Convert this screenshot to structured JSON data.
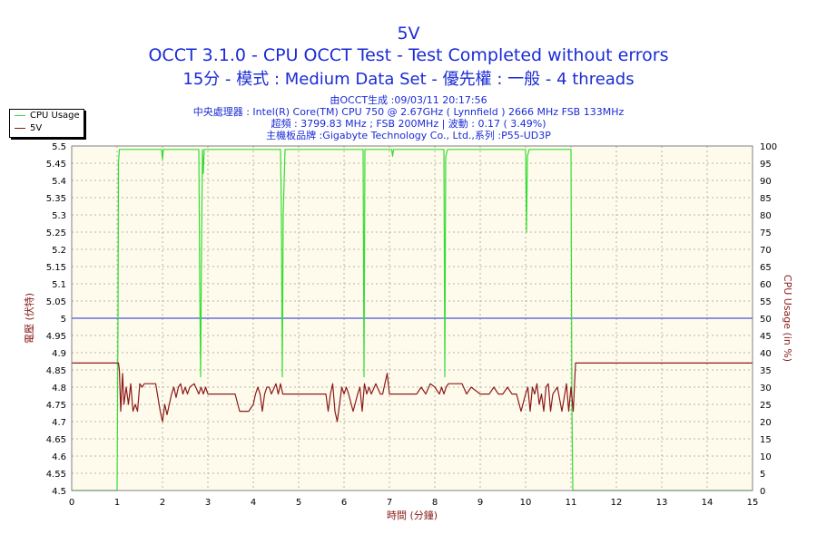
{
  "chart_data": {
    "type": "line",
    "title": "5V",
    "subtitle_lines": [
      "OCCT 3.1.0 - CPU OCCT Test - Test Completed without errors",
      "15分 - 模式 : Medium Data Set - 優先權 : 一般 - 4 threads"
    ],
    "info_lines": [
      "由OCCT生成 :09/03/11 20:17:56",
      "中央處理器 : Intel(R) Core(TM) CPU 750 @ 2.67GHz ( Lynnfield ) 2666 MHz FSB 133MHz",
      "超頻 : 3799.83 MHz ; FSB 200MHz | 波動 : 0.17 ( 3.49%)",
      "主機板品牌 :Gigabyte Technology Co., Ltd.,系列 :P55-UD3P"
    ],
    "xlabel": "時間 (分鐘)",
    "ylabel": "電壓 (伏特)",
    "y2label": "CPU Usage (in %)",
    "xlim": [
      0,
      15
    ],
    "ylim": [
      4.5,
      5.5
    ],
    "y2lim": [
      0,
      100
    ],
    "xticks": [
      "0",
      "1",
      "2",
      "3",
      "4",
      "5",
      "6",
      "7",
      "8",
      "9",
      "10",
      "11",
      "12",
      "13",
      "14",
      "15"
    ],
    "yticks": [
      "4.5",
      "4.55",
      "4.6",
      "4.65",
      "4.7",
      "4.75",
      "4.8",
      "4.85",
      "4.9",
      "4.95",
      "5",
      "5.05",
      "5.1",
      "5.15",
      "5.2",
      "5.25",
      "5.3",
      "5.35",
      "5.4",
      "5.45",
      "5.5"
    ],
    "y2ticks": [
      "0",
      "5",
      "10",
      "15",
      "20",
      "25",
      "30",
      "35",
      "40",
      "45",
      "50",
      "55",
      "60",
      "65",
      "70",
      "75",
      "80",
      "85",
      "90",
      "95",
      "100"
    ],
    "reference_line": {
      "y": 5.0,
      "color": "#1a2bd6"
    },
    "grid": true,
    "legend_position": "top-left",
    "colors": {
      "plot_bg": "#fffbec",
      "grid": "#b5b5a5",
      "cpu": "#33dd33",
      "v5": "#8b1a1a",
      "title": "#1a2bd6",
      "axis_label": "#8b1a1a"
    },
    "series": [
      {
        "name": "CPU Usage",
        "axis": "right",
        "color": "#33dd33",
        "x": [
          0,
          1.0,
          1.02,
          1.03,
          1.05,
          1.1,
          1.98,
          2.0,
          2.02,
          2.05,
          2.8,
          2.82,
          2.84,
          2.86,
          2.88,
          2.9,
          2.92,
          2.95,
          4.6,
          4.62,
          4.64,
          4.66,
          4.7,
          6.42,
          6.44,
          6.46,
          6.5,
          7.05,
          7.07,
          7.09,
          7.12,
          8.2,
          8.22,
          8.24,
          8.28,
          10.0,
          10.02,
          10.04,
          10.08,
          11.0,
          11.02,
          11.04,
          15
        ],
        "y": [
          0,
          0,
          50,
          95,
          99,
          99,
          99,
          96,
          99,
          99,
          99,
          60,
          33,
          70,
          99,
          92,
          99,
          99,
          99,
          80,
          33,
          80,
          99,
          99,
          33,
          99,
          99,
          99,
          97,
          99,
          99,
          99,
          33,
          97,
          99,
          99,
          75,
          97,
          99,
          99,
          25,
          0,
          0
        ]
      },
      {
        "name": "5V",
        "axis": "left",
        "color": "#8b1a1a",
        "x": [
          0,
          1.03,
          1.05,
          1.08,
          1.12,
          1.15,
          1.2,
          1.25,
          1.3,
          1.35,
          1.4,
          1.45,
          1.5,
          1.55,
          1.6,
          1.65,
          1.7,
          1.85,
          1.95,
          2.0,
          2.05,
          2.1,
          2.15,
          2.2,
          2.25,
          2.3,
          2.35,
          2.4,
          2.45,
          2.5,
          2.55,
          2.6,
          2.7,
          2.8,
          2.85,
          2.9,
          2.95,
          3.0,
          3.6,
          3.7,
          3.8,
          3.9,
          4.0,
          4.05,
          4.1,
          4.15,
          4.2,
          4.25,
          4.3,
          4.35,
          4.4,
          4.5,
          4.55,
          4.6,
          4.65,
          4.7,
          5.5,
          5.6,
          5.65,
          5.7,
          5.75,
          5.8,
          5.85,
          5.9,
          5.95,
          6.0,
          6.05,
          6.1,
          6.2,
          6.3,
          6.35,
          6.4,
          6.45,
          6.5,
          6.55,
          6.6,
          6.7,
          6.8,
          6.85,
          6.9,
          6.95,
          7.0,
          7.05,
          7.5,
          7.6,
          7.7,
          7.8,
          7.9,
          8.0,
          8.1,
          8.15,
          8.2,
          8.25,
          8.3,
          8.4,
          8.5,
          8.6,
          8.7,
          8.8,
          9.0,
          9.1,
          9.2,
          9.3,
          9.4,
          9.5,
          9.6,
          9.7,
          9.8,
          9.9,
          10.0,
          10.05,
          10.1,
          10.15,
          10.2,
          10.25,
          10.3,
          10.35,
          10.4,
          10.45,
          10.5,
          10.55,
          10.6,
          10.7,
          10.8,
          10.9,
          10.95,
          11.0,
          11.05,
          11.1,
          15
        ],
        "y": [
          4.87,
          4.87,
          4.85,
          4.73,
          4.84,
          4.75,
          4.8,
          4.75,
          4.81,
          4.73,
          4.75,
          4.73,
          4.81,
          4.8,
          4.81,
          4.81,
          4.81,
          4.81,
          4.73,
          4.7,
          4.75,
          4.72,
          4.75,
          4.78,
          4.8,
          4.77,
          4.8,
          4.81,
          4.78,
          4.8,
          4.78,
          4.8,
          4.81,
          4.78,
          4.8,
          4.78,
          4.8,
          4.78,
          4.78,
          4.73,
          4.73,
          4.73,
          4.75,
          4.78,
          4.8,
          4.78,
          4.73,
          4.78,
          4.8,
          4.8,
          4.78,
          4.81,
          4.78,
          4.81,
          4.78,
          4.78,
          4.78,
          4.78,
          4.73,
          4.78,
          4.81,
          4.73,
          4.7,
          4.75,
          4.8,
          4.78,
          4.8,
          4.78,
          4.73,
          4.78,
          4.8,
          4.73,
          4.81,
          4.78,
          4.8,
          4.78,
          4.81,
          4.78,
          4.78,
          4.81,
          4.84,
          4.78,
          4.78,
          4.78,
          4.78,
          4.8,
          4.78,
          4.81,
          4.8,
          4.78,
          4.8,
          4.78,
          4.8,
          4.81,
          4.81,
          4.81,
          4.81,
          4.78,
          4.8,
          4.78,
          4.78,
          4.78,
          4.8,
          4.78,
          4.78,
          4.8,
          4.78,
          4.78,
          4.73,
          4.78,
          4.8,
          4.73,
          4.8,
          4.78,
          4.81,
          4.75,
          4.78,
          4.73,
          4.8,
          4.81,
          4.73,
          4.78,
          4.8,
          4.73,
          4.81,
          4.73,
          4.8,
          4.73,
          4.87,
          4.87
        ]
      }
    ]
  }
}
